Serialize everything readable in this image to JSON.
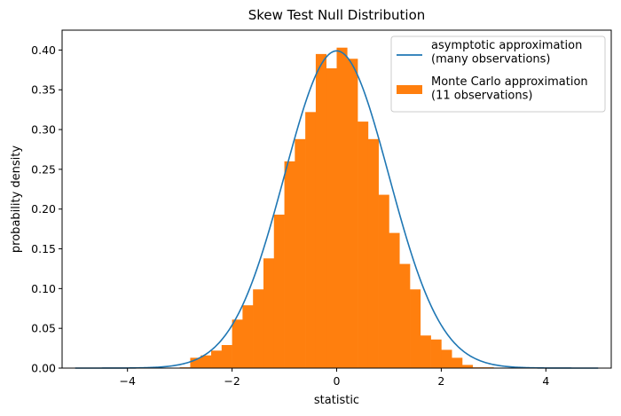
{
  "chart_data": {
    "type": "bar",
    "title": "Skew Test Null Distribution",
    "xlabel": "statistic",
    "ylabel": "probability density",
    "xlim": [
      -5.25,
      5.25
    ],
    "ylim": [
      0,
      0.425
    ],
    "x_ticks": [
      -4,
      -2,
      0,
      2,
      4
    ],
    "x_tick_labels": [
      "−4",
      "−2",
      "0",
      "2",
      "4"
    ],
    "y_ticks": [
      0.0,
      0.05,
      0.1,
      0.15,
      0.2,
      0.25,
      0.3,
      0.35,
      0.4
    ],
    "y_tick_labels": [
      "0.00",
      "0.05",
      "0.10",
      "0.15",
      "0.20",
      "0.25",
      "0.30",
      "0.35",
      "0.40"
    ],
    "grid": false,
    "legend_position": "top-right",
    "series": [
      {
        "name": "asymptotic approximation\n(many observations)",
        "type": "line",
        "color": "#1f77b4",
        "x_range": [
          -5,
          5
        ],
        "function": "standard-normal-pdf"
      },
      {
        "name": "Monte Carlo approximation\n(11 observations)",
        "type": "histogram",
        "color": "#ff7f0e",
        "bin_width": 0.2,
        "bin_starts": [
          -3.0,
          -2.8,
          -2.6,
          -2.4,
          -2.2,
          -2.0,
          -1.8,
          -1.6,
          -1.4,
          -1.2,
          -1.0,
          -0.8,
          -0.6,
          -0.4,
          -0.2,
          0.0,
          0.2,
          0.4,
          0.6,
          0.8,
          1.0,
          1.2,
          1.4,
          1.6,
          1.8,
          2.0,
          2.2,
          2.4,
          2.6,
          2.8
        ],
        "values": [
          0.001,
          0.013,
          0.016,
          0.022,
          0.029,
          0.061,
          0.079,
          0.099,
          0.138,
          0.193,
          0.26,
          0.288,
          0.322,
          0.395,
          0.377,
          0.403,
          0.389,
          0.31,
          0.288,
          0.218,
          0.17,
          0.131,
          0.099,
          0.041,
          0.036,
          0.023,
          0.013,
          0.004,
          0.001,
          0.001
        ]
      }
    ]
  }
}
